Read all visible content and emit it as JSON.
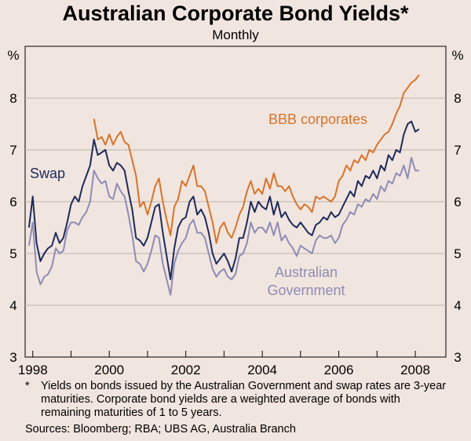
{
  "chart_data": {
    "type": "line",
    "title": "Australian Corporate Bond Yields*",
    "subtitle": "Monthly",
    "ylabel_left": "%",
    "ylabel_right": "%",
    "ylim": [
      3,
      9
    ],
    "yticks": [
      3,
      4,
      5,
      6,
      7,
      8
    ],
    "xlim": [
      1997.8,
      2008.8
    ],
    "xticks": [
      1998,
      2000,
      2002,
      2004,
      2006,
      2008
    ],
    "xtick_labels": [
      "1998",
      "2000",
      "2002",
      "2004",
      "2006",
      "2008"
    ],
    "series": [
      {
        "name": "BBB corporates",
        "label": "BBB corporates",
        "color": "#d8742a",
        "x": [
          1999.6,
          1999.7,
          1999.8,
          1999.9,
          2000.0,
          2000.1,
          2000.2,
          2000.3,
          2000.4,
          2000.5,
          2000.6,
          2000.7,
          2000.8,
          2000.9,
          2001.0,
          2001.1,
          2001.2,
          2001.3,
          2001.4,
          2001.5,
          2001.6,
          2001.7,
          2001.8,
          2001.9,
          2002.0,
          2002.1,
          2002.2,
          2002.3,
          2002.4,
          2002.5,
          2002.6,
          2002.7,
          2002.8,
          2002.9,
          2003.0,
          2003.1,
          2003.2,
          2003.3,
          2003.4,
          2003.5,
          2003.6,
          2003.7,
          2003.8,
          2003.9,
          2004.0,
          2004.1,
          2004.2,
          2004.3,
          2004.4,
          2004.5,
          2004.6,
          2004.7,
          2004.8,
          2004.9,
          2005.0,
          2005.1,
          2005.2,
          2005.3,
          2005.4,
          2005.5,
          2005.6,
          2005.7,
          2005.8,
          2005.9,
          2006.0,
          2006.1,
          2006.2,
          2006.3,
          2006.4,
          2006.5,
          2006.6,
          2006.7,
          2006.8,
          2006.9,
          2007.0,
          2007.1,
          2007.2,
          2007.3,
          2007.4,
          2007.5,
          2007.6,
          2007.7,
          2007.8,
          2007.9,
          2008.0,
          2008.1
        ],
        "values": [
          7.6,
          7.2,
          7.25,
          7.1,
          7.3,
          7.1,
          7.25,
          7.35,
          7.15,
          7.1,
          6.8,
          6.5,
          5.9,
          6.0,
          5.75,
          6.0,
          6.3,
          6.45,
          6.0,
          5.65,
          5.35,
          5.9,
          6.05,
          6.4,
          6.3,
          6.5,
          6.7,
          6.3,
          6.3,
          6.2,
          5.9,
          5.6,
          5.2,
          5.5,
          5.6,
          5.4,
          5.3,
          5.5,
          5.75,
          5.9,
          6.2,
          6.4,
          6.15,
          6.25,
          6.15,
          6.45,
          6.25,
          6.55,
          6.3,
          6.3,
          6.2,
          6.3,
          6.1,
          5.95,
          5.85,
          5.95,
          5.9,
          5.8,
          6.1,
          6.05,
          6.1,
          6.05,
          6.0,
          6.1,
          6.4,
          6.5,
          6.7,
          6.6,
          6.8,
          6.75,
          6.9,
          6.8,
          7.0,
          6.95,
          7.1,
          7.2,
          7.3,
          7.35,
          7.5,
          7.7,
          7.85,
          8.1,
          8.2,
          8.3,
          8.35,
          8.45
        ]
      },
      {
        "name": "Swap",
        "label": "Swap",
        "color": "#1d2a5b",
        "x": [
          1997.9,
          1998.0,
          1998.1,
          1998.2,
          1998.3,
          1998.4,
          1998.5,
          1998.6,
          1998.7,
          1998.8,
          1998.9,
          1999.0,
          1999.1,
          1999.2,
          1999.3,
          1999.4,
          1999.5,
          1999.6,
          1999.7,
          1999.8,
          1999.9,
          2000.0,
          2000.1,
          2000.2,
          2000.3,
          2000.4,
          2000.5,
          2000.6,
          2000.7,
          2000.8,
          2000.9,
          2001.0,
          2001.1,
          2001.2,
          2001.3,
          2001.4,
          2001.5,
          2001.6,
          2001.7,
          2001.8,
          2001.9,
          2002.0,
          2002.1,
          2002.2,
          2002.3,
          2002.4,
          2002.5,
          2002.6,
          2002.7,
          2002.8,
          2002.9,
          2003.0,
          2003.1,
          2003.2,
          2003.3,
          2003.4,
          2003.5,
          2003.6,
          2003.7,
          2003.8,
          2003.9,
          2004.0,
          2004.1,
          2004.2,
          2004.3,
          2004.4,
          2004.5,
          2004.6,
          2004.7,
          2004.8,
          2004.9,
          2005.0,
          2005.1,
          2005.2,
          2005.3,
          2005.4,
          2005.5,
          2005.6,
          2005.7,
          2005.8,
          2005.9,
          2006.0,
          2006.1,
          2006.2,
          2006.3,
          2006.4,
          2006.5,
          2006.6,
          2006.7,
          2006.8,
          2006.9,
          2007.0,
          2007.1,
          2007.2,
          2007.3,
          2007.4,
          2007.5,
          2007.6,
          2007.7,
          2007.8,
          2007.9,
          2008.0,
          2008.1
        ],
        "values": [
          5.5,
          6.1,
          5.2,
          4.85,
          5.0,
          5.1,
          5.15,
          5.4,
          5.2,
          5.3,
          5.6,
          5.95,
          6.1,
          6.0,
          6.3,
          6.5,
          6.7,
          7.2,
          6.9,
          6.95,
          7.0,
          6.7,
          6.6,
          6.75,
          6.7,
          6.6,
          6.2,
          5.85,
          5.3,
          5.25,
          5.15,
          5.3,
          5.6,
          5.9,
          5.95,
          5.4,
          4.95,
          4.5,
          5.1,
          5.5,
          5.65,
          5.7,
          6.0,
          6.1,
          5.75,
          5.85,
          5.7,
          5.4,
          5.0,
          4.8,
          4.9,
          5.0,
          4.85,
          4.65,
          4.9,
          5.3,
          5.3,
          5.6,
          6.0,
          5.8,
          6.0,
          5.9,
          5.85,
          6.1,
          5.75,
          6.0,
          5.7,
          5.8,
          5.65,
          5.55,
          5.5,
          5.6,
          5.5,
          5.4,
          5.35,
          5.55,
          5.6,
          5.7,
          5.65,
          5.8,
          5.7,
          5.75,
          5.9,
          6.05,
          6.2,
          6.1,
          6.4,
          6.3,
          6.5,
          6.45,
          6.6,
          6.45,
          6.7,
          6.6,
          6.9,
          6.8,
          7.0,
          6.95,
          7.3,
          7.5,
          7.55,
          7.35,
          7.4
        ]
      },
      {
        "name": "Australian Government",
        "label_line1": "Australian",
        "label_line2": "Government",
        "color": "#8e8cb5",
        "x": [
          1997.9,
          1998.0,
          1998.1,
          1998.2,
          1998.3,
          1998.4,
          1998.5,
          1998.6,
          1998.7,
          1998.8,
          1998.9,
          1999.0,
          1999.1,
          1999.2,
          1999.3,
          1999.4,
          1999.5,
          1999.6,
          1999.7,
          1999.8,
          1999.9,
          2000.0,
          2000.1,
          2000.2,
          2000.3,
          2000.4,
          2000.5,
          2000.6,
          2000.7,
          2000.8,
          2000.9,
          2001.0,
          2001.1,
          2001.2,
          2001.3,
          2001.4,
          2001.5,
          2001.6,
          2001.7,
          2001.8,
          2001.9,
          2002.0,
          2002.1,
          2002.2,
          2002.3,
          2002.4,
          2002.5,
          2002.6,
          2002.7,
          2002.8,
          2002.9,
          2003.0,
          2003.1,
          2003.2,
          2003.3,
          2003.4,
          2003.5,
          2003.6,
          2003.7,
          2003.8,
          2003.9,
          2004.0,
          2004.1,
          2004.2,
          2004.3,
          2004.4,
          2004.5,
          2004.6,
          2004.7,
          2004.8,
          2004.9,
          2005.0,
          2005.1,
          2005.2,
          2005.3,
          2005.4,
          2005.5,
          2005.6,
          2005.7,
          2005.8,
          2005.9,
          2006.0,
          2006.1,
          2006.2,
          2006.3,
          2006.4,
          2006.5,
          2006.6,
          2006.7,
          2006.8,
          2006.9,
          2007.0,
          2007.1,
          2007.2,
          2007.3,
          2007.4,
          2007.5,
          2007.6,
          2007.7,
          2007.8,
          2007.9,
          2008.0,
          2008.1
        ],
        "values": [
          5.15,
          5.6,
          4.65,
          4.4,
          4.55,
          4.6,
          4.75,
          5.1,
          5.0,
          5.05,
          5.45,
          5.6,
          5.6,
          5.55,
          5.7,
          5.8,
          6.0,
          6.6,
          6.45,
          6.35,
          6.4,
          6.1,
          6.05,
          6.35,
          6.2,
          6.1,
          5.75,
          5.35,
          4.85,
          4.8,
          4.65,
          4.8,
          5.05,
          5.35,
          5.3,
          4.8,
          4.5,
          4.2,
          4.8,
          5.05,
          5.2,
          5.3,
          5.55,
          5.65,
          5.4,
          5.4,
          5.3,
          5.0,
          4.7,
          4.55,
          4.65,
          4.7,
          4.55,
          4.5,
          4.6,
          4.95,
          5.0,
          5.2,
          5.6,
          5.4,
          5.5,
          5.5,
          5.4,
          5.6,
          5.35,
          5.6,
          5.25,
          5.35,
          5.2,
          5.1,
          4.95,
          5.15,
          5.1,
          5.05,
          5.0,
          5.25,
          5.35,
          5.3,
          5.3,
          5.35,
          5.2,
          5.3,
          5.55,
          5.65,
          5.8,
          5.75,
          5.95,
          5.9,
          6.05,
          6.0,
          6.15,
          6.05,
          6.3,
          6.2,
          6.4,
          6.35,
          6.55,
          6.5,
          6.7,
          6.45,
          6.85,
          6.6,
          6.6
        ]
      }
    ]
  },
  "footnote": {
    "marker": "*",
    "text": "Yields on bonds issued by the Australian Government and swap rates are 3-year maturities. Corporate bond yields are a weighted average of bonds with remaining maturities of 1 to 5 years."
  },
  "sources": "Sources: Bloomberg; RBA; UBS AG, Australia Branch"
}
